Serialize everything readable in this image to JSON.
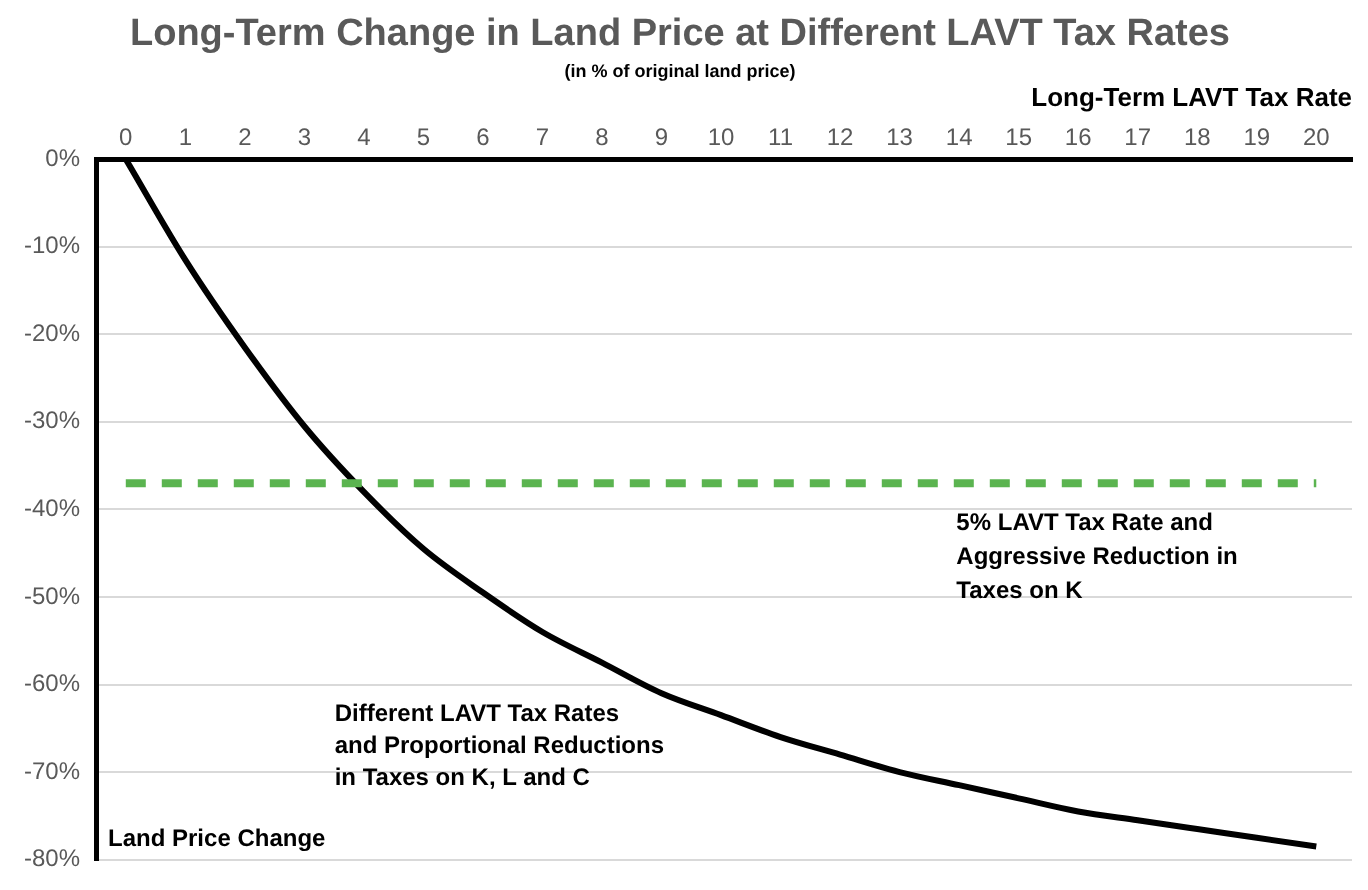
{
  "chart_data": {
    "type": "line",
    "title": "Long-Term Change in Land Price at Different LAVT Tax Rates",
    "subtitle": "(in % of original land price)",
    "xlabel": "Long-Term LAVT Tax Rate",
    "ylabel": "Land Price Change",
    "x": [
      0,
      1,
      2,
      3,
      4,
      5,
      6,
      7,
      8,
      9,
      10,
      11,
      12,
      13,
      14,
      15,
      16,
      17,
      18,
      19,
      20
    ],
    "series": [
      {
        "name": "Different LAVT Tax Rates and Proportional Reductions in Taxes on K, L and C",
        "color": "#000000",
        "values": [
          0,
          -11.5,
          -21.5,
          -30.5,
          -38,
          -44.5,
          -49.5,
          -54,
          -57.5,
          -61,
          -63.5,
          -66,
          -68,
          -70,
          -71.5,
          -73,
          -74.5,
          -75.5,
          -76.5,
          -77.5,
          -78.5
        ]
      }
    ],
    "ref_lines": [
      {
        "axis": "y",
        "value": -37,
        "label": "5% LAVT Tax Rate and Aggressive Reduction in Taxes on K",
        "color": "#5bb450",
        "line_style": "dashed"
      }
    ],
    "xlim": [
      -0.5,
      20.6
    ],
    "xticks": [
      0,
      1,
      2,
      3,
      4,
      5,
      6,
      7,
      8,
      9,
      10,
      11,
      12,
      13,
      14,
      15,
      16,
      17,
      18,
      19,
      20
    ],
    "ylim": [
      -80,
      0
    ],
    "yticks": [
      {
        "value": 0,
        "label": "0%"
      },
      {
        "value": -10,
        "label": "-10%"
      },
      {
        "value": -20,
        "label": "-20%"
      },
      {
        "value": -30,
        "label": "-30%"
      },
      {
        "value": -40,
        "label": "-40%"
      },
      {
        "value": -50,
        "label": "-50%"
      },
      {
        "value": -60,
        "label": "-60%"
      },
      {
        "value": -70,
        "label": "-70%"
      },
      {
        "value": -80,
        "label": "-80%"
      }
    ],
    "grid": "y",
    "legend": false,
    "marker": "none",
    "line_style": "solid"
  }
}
